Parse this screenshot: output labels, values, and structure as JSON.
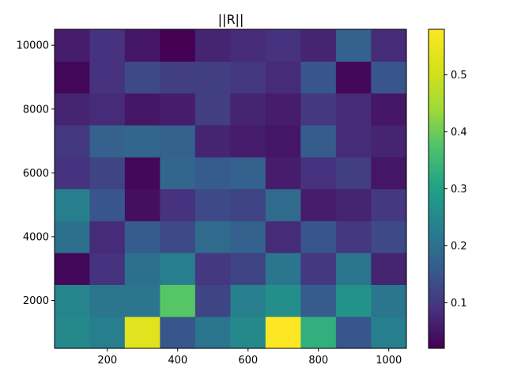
{
  "chart_data": {
    "type": "heatmap",
    "title": "||R||",
    "xlabel": "",
    "ylabel": "",
    "colormap": "viridis",
    "xlim": [
      50,
      1050
    ],
    "ylim": [
      500,
      10500
    ],
    "x_ticks": [
      200,
      400,
      600,
      800,
      1000
    ],
    "y_ticks": [
      2000,
      4000,
      6000,
      8000,
      10000
    ],
    "x_edges": [
      50,
      150,
      250,
      350,
      450,
      550,
      650,
      750,
      850,
      950,
      1050
    ],
    "y_edges": [
      500,
      1500,
      2500,
      3500,
      4500,
      5500,
      6500,
      7500,
      8500,
      9500,
      10500
    ],
    "colorbar": {
      "min": 0.02,
      "max": 0.58,
      "ticks": [
        0.1,
        0.2,
        0.3,
        0.4,
        0.5
      ]
    },
    "grid": false,
    "values": [
      [
        0.25,
        0.23,
        0.53,
        0.15,
        0.21,
        0.25,
        0.58,
        0.33,
        0.15,
        0.23
      ],
      [
        0.24,
        0.21,
        0.21,
        0.38,
        0.12,
        0.23,
        0.26,
        0.16,
        0.27,
        0.21
      ],
      [
        0.03,
        0.09,
        0.2,
        0.23,
        0.1,
        0.12,
        0.21,
        0.1,
        0.21,
        0.07
      ],
      [
        0.2,
        0.08,
        0.16,
        0.13,
        0.19,
        0.17,
        0.08,
        0.15,
        0.1,
        0.13
      ],
      [
        0.23,
        0.15,
        0.04,
        0.09,
        0.13,
        0.12,
        0.19,
        0.06,
        0.07,
        0.1
      ],
      [
        0.09,
        0.12,
        0.03,
        0.18,
        0.16,
        0.17,
        0.06,
        0.09,
        0.11,
        0.05
      ],
      [
        0.1,
        0.17,
        0.18,
        0.17,
        0.07,
        0.06,
        0.05,
        0.16,
        0.08,
        0.07
      ],
      [
        0.07,
        0.08,
        0.05,
        0.06,
        0.11,
        0.07,
        0.06,
        0.1,
        0.08,
        0.05
      ],
      [
        0.03,
        0.09,
        0.13,
        0.11,
        0.11,
        0.1,
        0.08,
        0.15,
        0.03,
        0.15
      ],
      [
        0.06,
        0.09,
        0.05,
        0.02,
        0.07,
        0.08,
        0.09,
        0.07,
        0.17,
        0.08
      ]
    ]
  }
}
